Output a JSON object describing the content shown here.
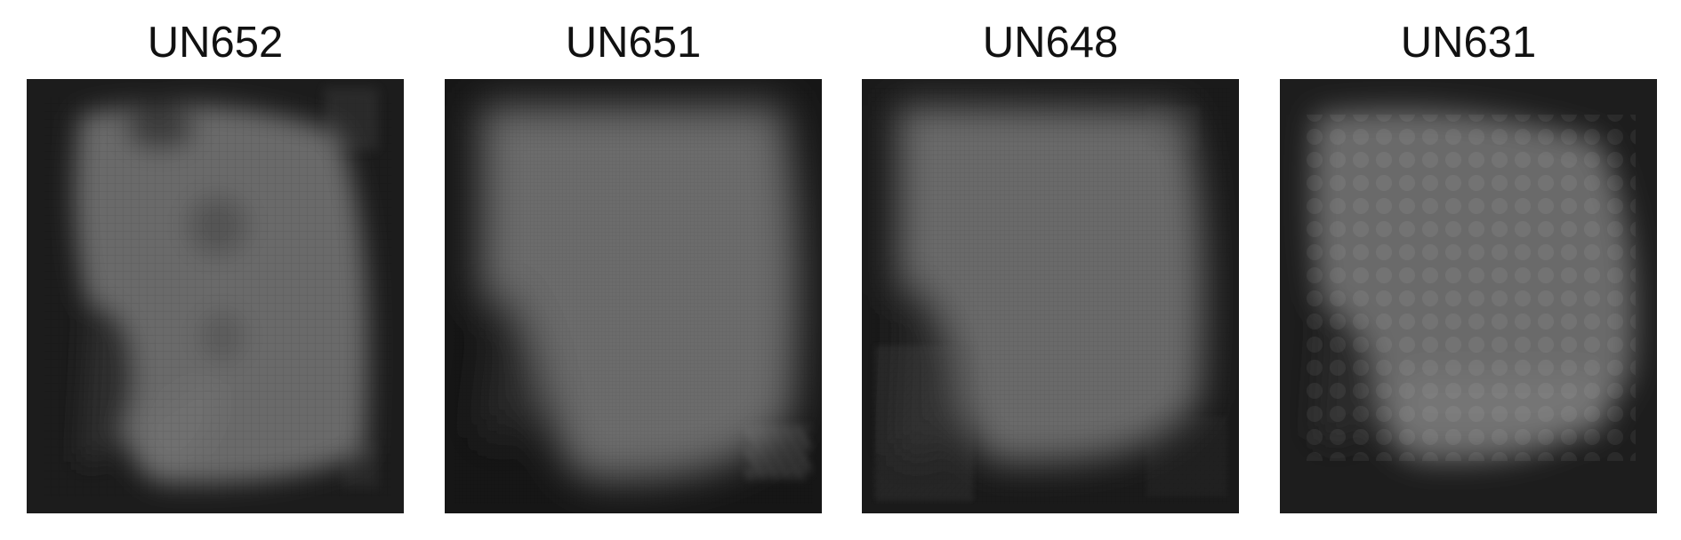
{
  "panels": [
    {
      "title": "UN652"
    },
    {
      "title": "UN651"
    },
    {
      "title": "UN648"
    },
    {
      "title": "UN631"
    }
  ]
}
